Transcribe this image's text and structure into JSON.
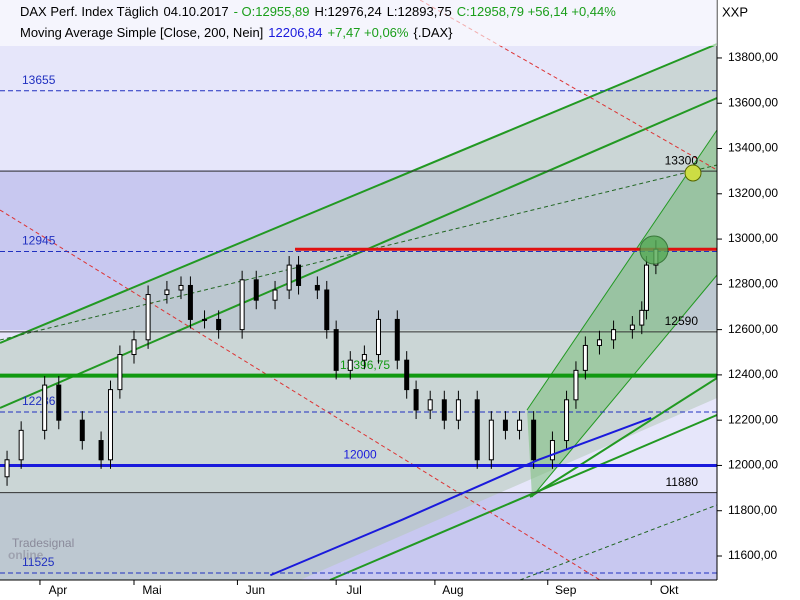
{
  "chart_data": {
    "type": "candlestick",
    "header": [
      {
        "text": "DAX Perf. Index Täglich",
        "color": "#000000"
      },
      {
        "text": "04.10.2017",
        "color": "#000000"
      },
      {
        "text": "- O:12955,89",
        "color": "#1a9e1a"
      },
      {
        "text": "H:12976,24",
        "color": "#000000"
      },
      {
        "text": "L:12893,75",
        "color": "#000000"
      },
      {
        "text": "C:12958,79 +56,14 +0,44%",
        "color": "#1a9e1a"
      }
    ],
    "currency": "XXP",
    "indicator": [
      {
        "text": "Moving Average Simple [Close, 200, Nein]",
        "color": "#000000"
      },
      {
        "text": "12206,84",
        "color": "#1a1adc"
      },
      {
        "text": "+7,47 +0,06%",
        "color": "#1a9e1a"
      },
      {
        "text": "{.DAX}",
        "color": "#000000"
      }
    ],
    "watermark": [
      "Tradesignal",
      "online"
    ],
    "x": [
      -7,
      -4,
      1,
      4,
      9,
      13,
      15,
      17,
      20,
      23,
      27,
      30,
      32,
      35,
      38,
      43,
      46,
      50,
      53,
      55,
      59,
      61,
      63,
      66,
      69,
      72,
      76,
      78,
      80,
      83,
      86,
      89,
      93,
      96,
      99,
      102,
      105,
      109,
      112,
      114,
      116,
      119,
      122,
      126,
      128,
      129,
      131
    ],
    "open": [
      11950,
      12025,
      12155,
      12355,
      12200,
      12110,
      12025,
      12335,
      12490,
      12555,
      12755,
      12775,
      12795,
      12645,
      12645,
      12600,
      12820,
      12730,
      12775,
      12885,
      12795,
      12775,
      12600,
      12420,
      12465,
      12490,
      12645,
      12465,
      12335,
      12245,
      12290,
      12200,
      12290,
      12025,
      12200,
      12155,
      12200,
      12025,
      12110,
      12290,
      12420,
      12530,
      12555,
      12600,
      12620,
      12685,
      12885
    ],
    "high": [
      12065,
      12195,
      12395,
      12395,
      12240,
      12150,
      12375,
      12530,
      12595,
      12795,
      12815,
      12835,
      12835,
      12685,
      12685,
      12860,
      12860,
      12815,
      12925,
      12925,
      12835,
      12815,
      12640,
      12505,
      12530,
      12685,
      12685,
      12505,
      12375,
      12330,
      12330,
      12330,
      12330,
      12240,
      12240,
      12240,
      12240,
      12150,
      12330,
      12460,
      12570,
      12595,
      12640,
      12660,
      12725,
      12925,
      12995
    ],
    "low": [
      11910,
      11985,
      12115,
      12160,
      12070,
      11985,
      11985,
      12295,
      12450,
      12515,
      12715,
      12735,
      12605,
      12605,
      12560,
      12560,
      12690,
      12690,
      12735,
      12755,
      12735,
      12560,
      12380,
      12380,
      12425,
      12450,
      12425,
      12295,
      12205,
      12205,
      12160,
      12160,
      11985,
      11985,
      12115,
      12115,
      11985,
      11985,
      12070,
      12250,
      12380,
      12490,
      12515,
      12560,
      12580,
      12645,
      12845
    ],
    "close": [
      12025,
      12155,
      12355,
      12200,
      12110,
      12025,
      12335,
      12490,
      12555,
      12755,
      12775,
      12795,
      12645,
      12645,
      12600,
      12820,
      12730,
      12775,
      12885,
      12795,
      12775,
      12600,
      12420,
      12465,
      12490,
      12645,
      12465,
      12335,
      12245,
      12290,
      12200,
      12290,
      12025,
      12200,
      12155,
      12200,
      12025,
      12110,
      12290,
      12420,
      12530,
      12555,
      12600,
      12620,
      12685,
      12885,
      12955
    ],
    "moving_average": {
      "color": "#1a1adc",
      "x": [
        49,
        77,
        94,
        106,
        119,
        130
      ],
      "values": [
        11515,
        11760,
        11915,
        12025,
        12125,
        12210
      ]
    },
    "levels": [
      {
        "value": 13655,
        "label": "13655",
        "style": "dashed"
      },
      {
        "value": 13300,
        "label": "13300",
        "style": "solid"
      },
      {
        "value": 12945,
        "label": "12945",
        "style": "dashed"
      },
      {
        "value": 12590,
        "label": "12590",
        "style": "solid"
      },
      {
        "value": 12396.75,
        "label": "12396,75",
        "style": "green"
      },
      {
        "value": 12236,
        "label": "12236",
        "style": "dashed"
      },
      {
        "value": 12000,
        "label": "12000",
        "style": "blue"
      },
      {
        "value": 11880,
        "label": "11880",
        "style": "solid"
      },
      {
        "value": 11525,
        "label": "11525",
        "style": "dashed"
      }
    ],
    "resistance": 12955,
    "xlim": [
      -8.5,
      144
    ],
    "xticks": [
      {
        "value": 0,
        "label": "Apr"
      },
      {
        "value": 20,
        "label": "Mai"
      },
      {
        "value": 42,
        "label": "Jun"
      },
      {
        "value": 63,
        "label": "Jul"
      },
      {
        "value": 84,
        "label": "Aug"
      },
      {
        "value": 108,
        "label": "Sep"
      },
      {
        "value": 130,
        "label": "Okt"
      }
    ],
    "ylim": [
      11494,
      14056
    ],
    "yticks": [
      {
        "value": 11600,
        "label": "11600,00"
      },
      {
        "value": 11800,
        "label": "11800,00"
      },
      {
        "value": 12000,
        "label": "12000,00"
      },
      {
        "value": 12200,
        "label": "12200,00"
      },
      {
        "value": 12400,
        "label": "12400,00"
      },
      {
        "value": 12600,
        "label": "12600,00"
      },
      {
        "value": 12800,
        "label": "12800,00"
      },
      {
        "value": 13000,
        "label": "13000,00"
      },
      {
        "value": 13200,
        "label": "13200,00"
      },
      {
        "value": 13400,
        "label": "13400,00"
      },
      {
        "value": 13600,
        "label": "13600,00"
      },
      {
        "value": 13800,
        "label": "13800,00"
      }
    ]
  }
}
